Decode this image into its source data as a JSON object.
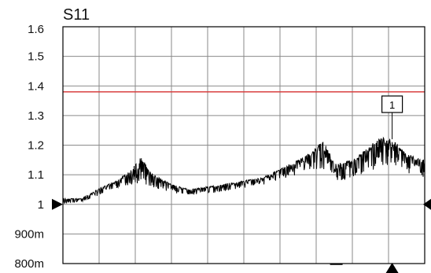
{
  "chart_data": {
    "type": "line",
    "title": "S11",
    "xlabel": "",
    "ylabel": "",
    "x_divisions": 10,
    "ylim": [
      0.8,
      1.6
    ],
    "y_ticks": [
      {
        "value": 1.6,
        "label": "1.6"
      },
      {
        "value": 1.5,
        "label": "1.5"
      },
      {
        "value": 1.4,
        "label": "1.4"
      },
      {
        "value": 1.3,
        "label": "1.3"
      },
      {
        "value": 1.2,
        "label": "1.2"
      },
      {
        "value": 1.1,
        "label": "1.1"
      },
      {
        "value": 1.0,
        "label": "1"
      },
      {
        "value": 0.9,
        "label": "900m"
      },
      {
        "value": 0.8,
        "label": "800m"
      }
    ],
    "grid": true,
    "limit_line": {
      "value": 1.38,
      "color": "#d94040"
    },
    "reference_level": 1.0,
    "marker": {
      "label": "1",
      "x_fraction": 0.91,
      "value": 1.22
    },
    "series": [
      {
        "color": "#000000",
        "envelope": [
          {
            "x": 0.0,
            "lo": 0.99,
            "hi": 1.02
          },
          {
            "x": 0.05,
            "lo": 1.0,
            "hi": 1.02
          },
          {
            "x": 0.08,
            "lo": 1.01,
            "hi": 1.04
          },
          {
            "x": 0.11,
            "lo": 1.02,
            "hi": 1.06
          },
          {
            "x": 0.15,
            "lo": 1.04,
            "hi": 1.08
          },
          {
            "x": 0.19,
            "lo": 1.03,
            "hi": 1.12
          },
          {
            "x": 0.215,
            "lo": 1.02,
            "hi": 1.16
          },
          {
            "x": 0.25,
            "lo": 1.03,
            "hi": 1.1
          },
          {
            "x": 0.3,
            "lo": 1.02,
            "hi": 1.07
          },
          {
            "x": 0.35,
            "lo": 1.02,
            "hi": 1.05
          },
          {
            "x": 0.4,
            "lo": 1.02,
            "hi": 1.06
          },
          {
            "x": 0.45,
            "lo": 1.03,
            "hi": 1.07
          },
          {
            "x": 0.5,
            "lo": 1.04,
            "hi": 1.08
          },
          {
            "x": 0.55,
            "lo": 1.05,
            "hi": 1.09
          },
          {
            "x": 0.6,
            "lo": 1.06,
            "hi": 1.12
          },
          {
            "x": 0.65,
            "lo": 1.07,
            "hi": 1.15
          },
          {
            "x": 0.69,
            "lo": 1.08,
            "hi": 1.18
          },
          {
            "x": 0.72,
            "lo": 1.05,
            "hi": 1.22
          },
          {
            "x": 0.75,
            "lo": 1.04,
            "hi": 1.14
          },
          {
            "x": 0.8,
            "lo": 1.04,
            "hi": 1.15
          },
          {
            "x": 0.85,
            "lo": 1.05,
            "hi": 1.2
          },
          {
            "x": 0.88,
            "lo": 1.06,
            "hi": 1.23
          },
          {
            "x": 0.91,
            "lo": 1.07,
            "hi": 1.22
          },
          {
            "x": 0.95,
            "lo": 1.06,
            "hi": 1.17
          },
          {
            "x": 1.0,
            "lo": 1.05,
            "hi": 1.15
          }
        ]
      }
    ]
  }
}
